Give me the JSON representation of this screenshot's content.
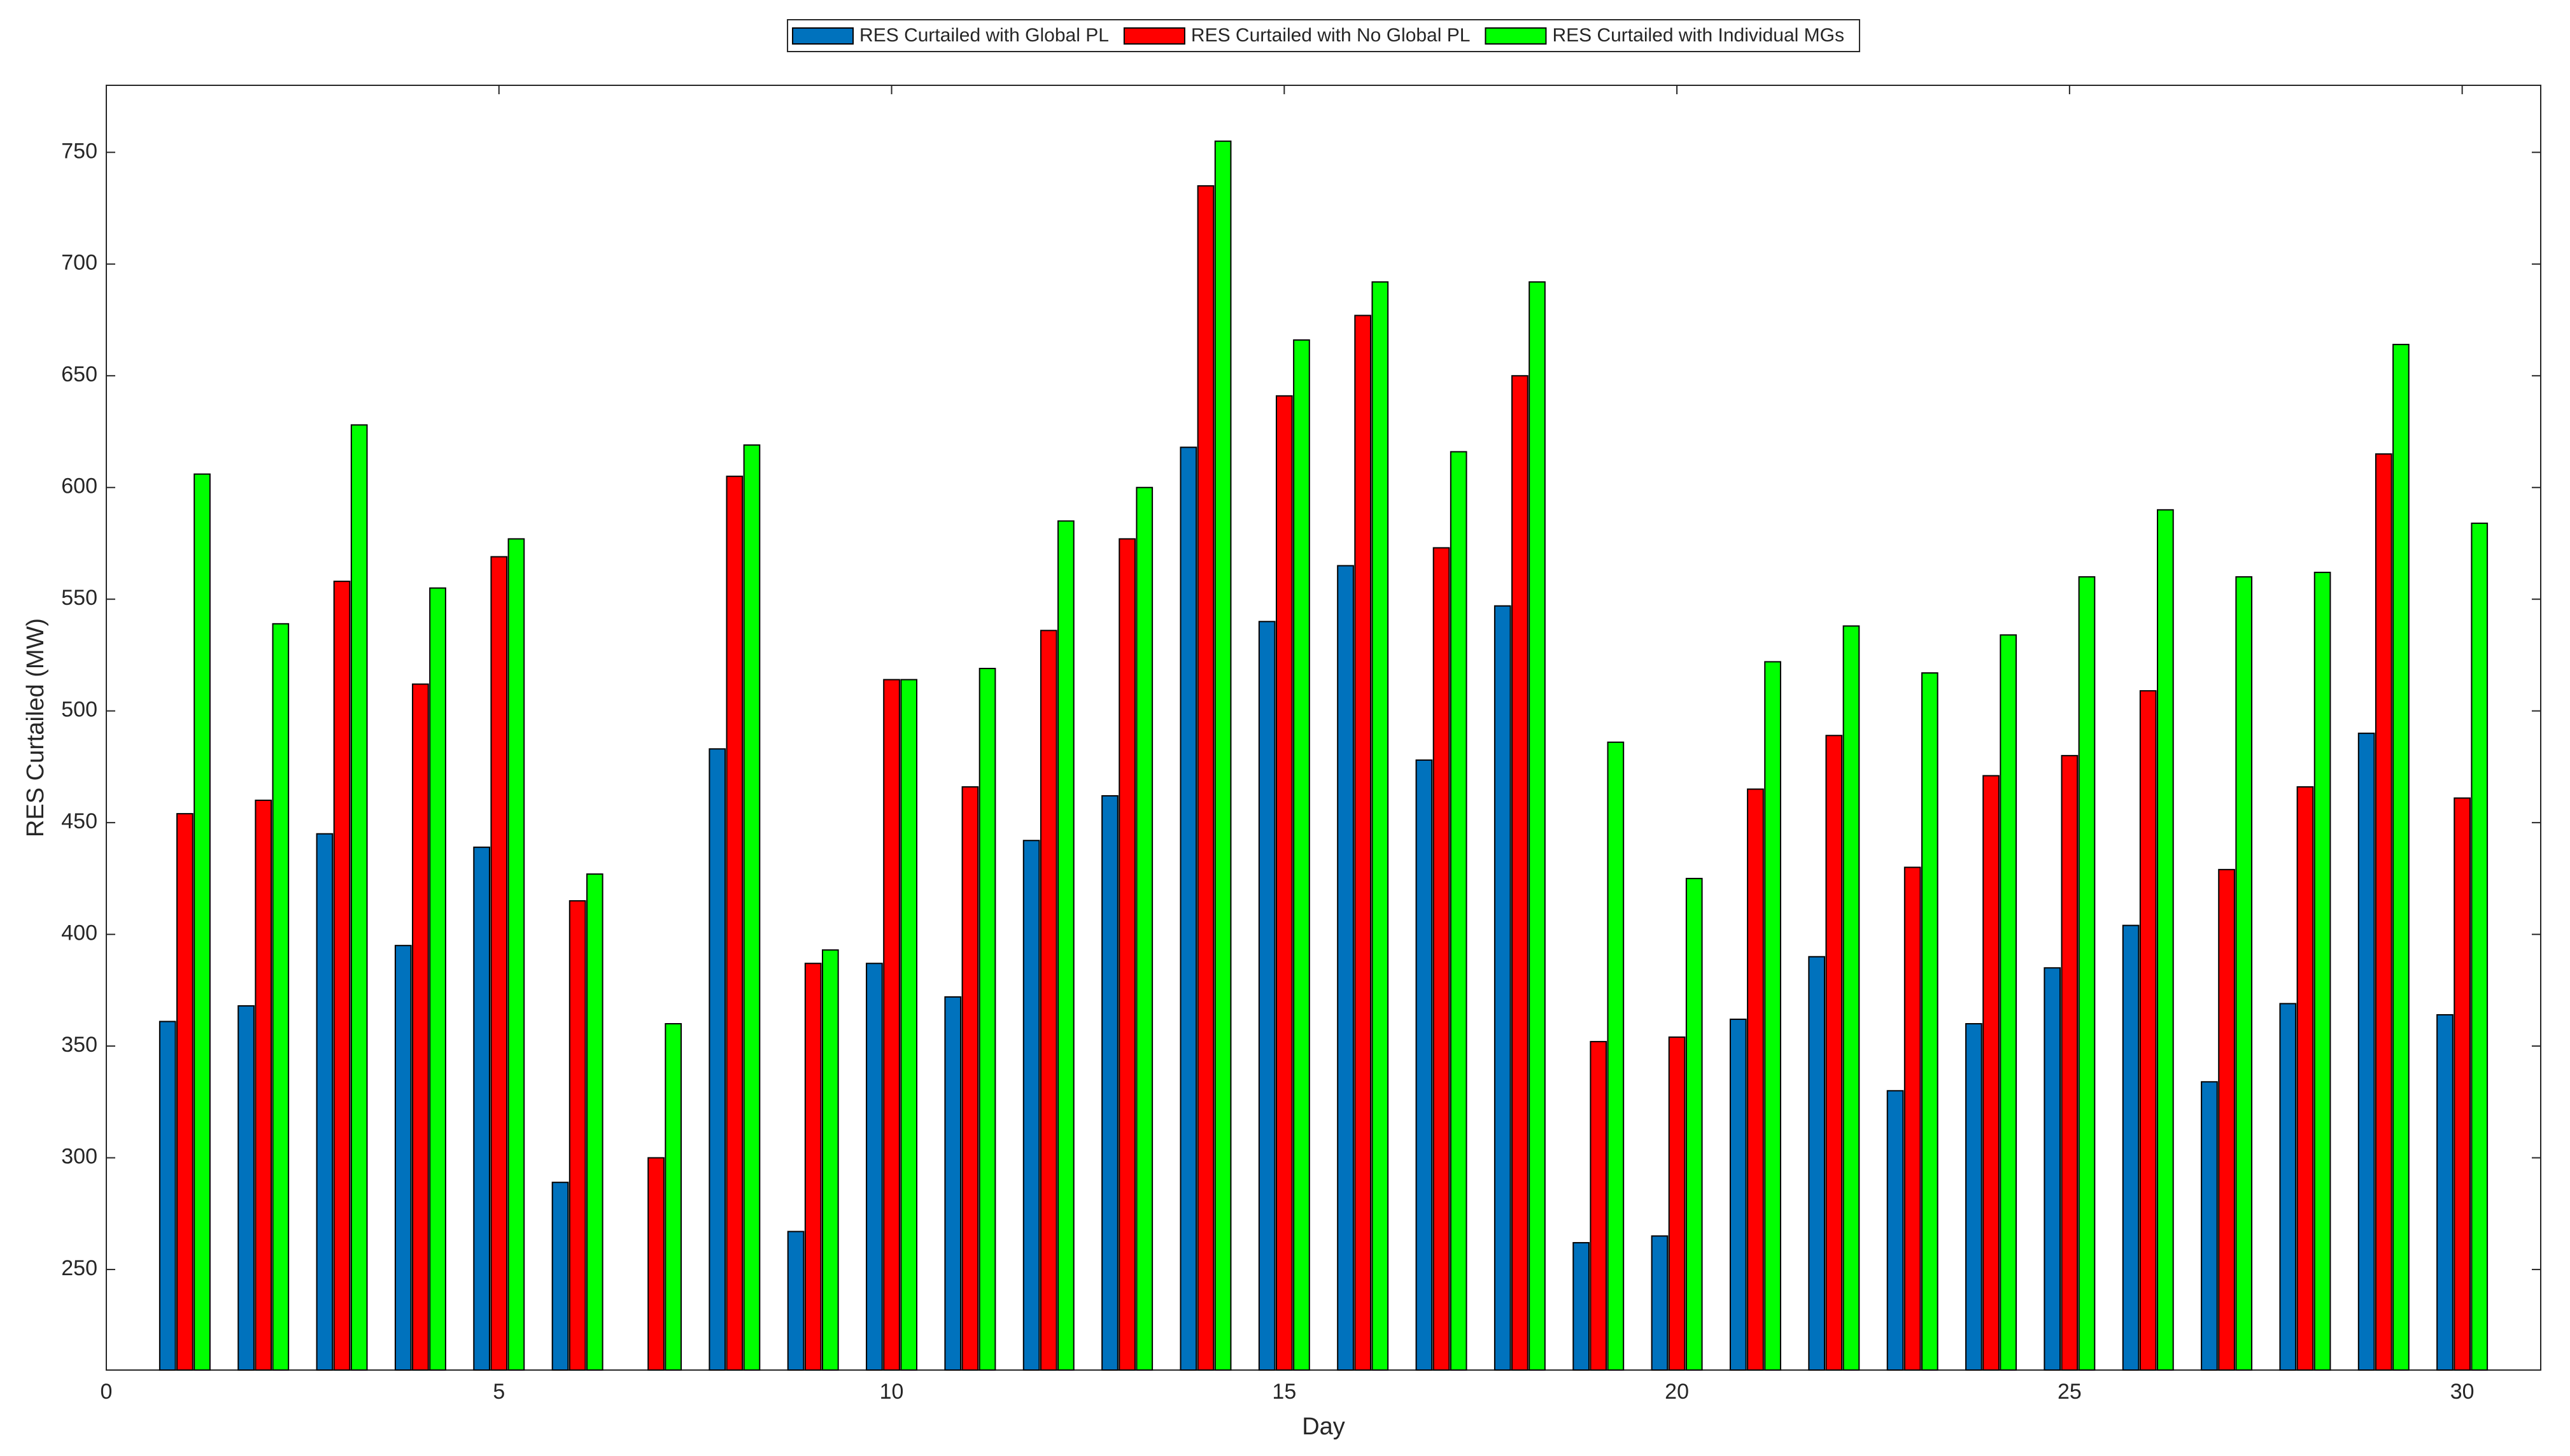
{
  "chart_data": {
    "type": "bar",
    "xlabel": "Day",
    "ylabel": "RES Curtailed (MW)",
    "x": [
      1,
      2,
      3,
      4,
      5,
      6,
      7,
      8,
      9,
      10,
      11,
      12,
      13,
      14,
      15,
      16,
      17,
      18,
      19,
      20,
      21,
      22,
      23,
      24,
      25,
      26,
      27,
      28,
      29,
      30
    ],
    "series": [
      {
        "name": "RES Curtailed with Global PL",
        "color": "#0072BD",
        "values": [
          361,
          368,
          445,
          395,
          439,
          289,
          null,
          483,
          267,
          387,
          372,
          442,
          462,
          618,
          540,
          565,
          478,
          547,
          262,
          265,
          362,
          390,
          330,
          360,
          385,
          404,
          334,
          369,
          490,
          364
        ]
      },
      {
        "name": "RES Curtailed with No Global PL",
        "color": "#FF0000",
        "values": [
          454,
          460,
          558,
          512,
          569,
          415,
          300,
          605,
          387,
          514,
          466,
          536,
          577,
          735,
          641,
          677,
          573,
          650,
          352,
          354,
          465,
          489,
          430,
          471,
          480,
          509,
          429,
          466,
          615,
          461
        ]
      },
      {
        "name": "RES Curtailed with Individual MGs",
        "color": "#00FF00",
        "values": [
          606,
          539,
          628,
          555,
          577,
          427,
          360,
          619,
          393,
          514,
          519,
          585,
          600,
          755,
          666,
          692,
          616,
          692,
          486,
          425,
          522,
          538,
          517,
          534,
          560,
          590,
          560,
          562,
          664,
          584
        ]
      }
    ],
    "xlim": [
      0,
      31
    ],
    "xticks": [
      0,
      5,
      10,
      15,
      20,
      25,
      30
    ],
    "ylim": [
      205,
      780
    ],
    "yticks": [
      250,
      300,
      350,
      400,
      450,
      500,
      550,
      600,
      650,
      700,
      750
    ],
    "grid": false,
    "legend": "top"
  }
}
